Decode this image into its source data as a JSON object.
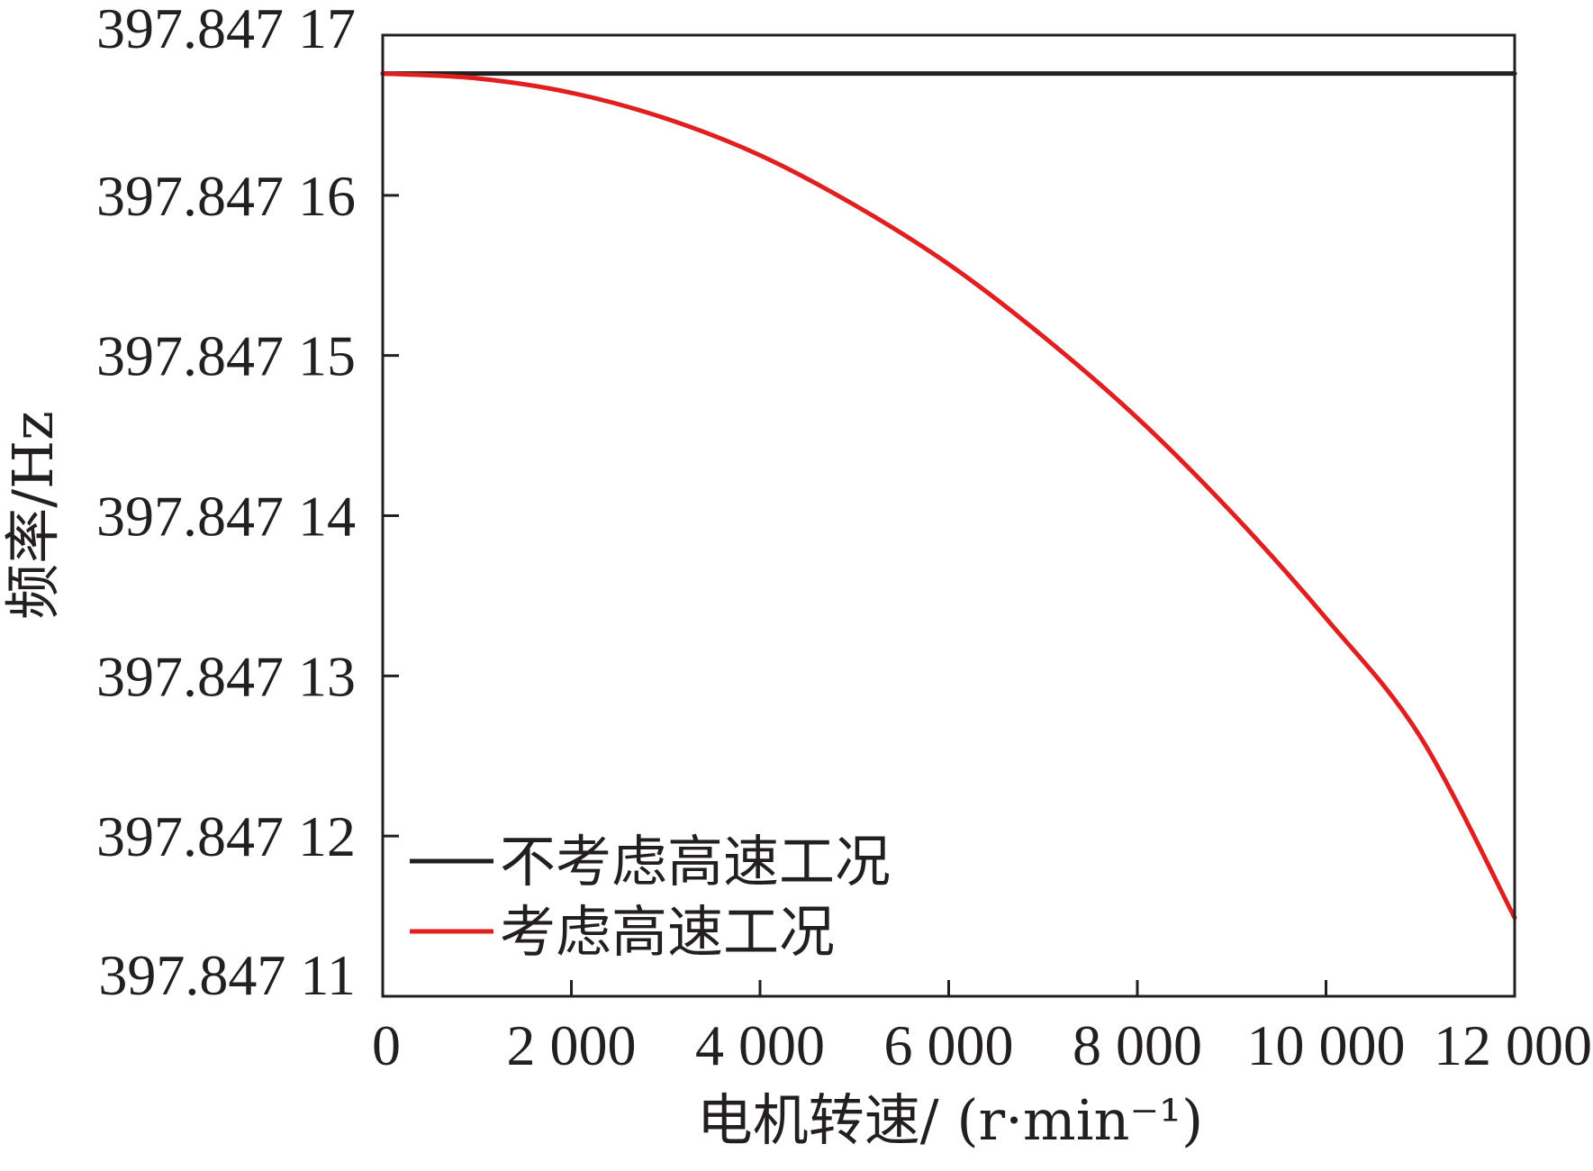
{
  "chart_data": {
    "type": "line",
    "xlabel": "电机转速/ (r·min⁻¹)",
    "ylabel": "频率/Hz",
    "xlim": [
      0,
      12000
    ],
    "ylim": [
      11,
      17
    ],
    "x_ticks": [
      0,
      2000,
      4000,
      6000,
      8000,
      10000,
      12000
    ],
    "x_tick_labels": [
      "0",
      "2 000",
      "4 000",
      "6 000",
      "8 000",
      "10 000",
      "12 000"
    ],
    "y_ticks": [
      11,
      12,
      13,
      14,
      15,
      16,
      17
    ],
    "y_tick_labels": [
      "397.847 11",
      "397.847 12",
      "397.847 13",
      "397.847 14",
      "397.847 15",
      "397.847 16",
      "397.847 17"
    ],
    "y_value_note": "397.847 xx",
    "grid": false,
    "legend_position": "bottom-left",
    "series": [
      {
        "name": "不考虑高速工况",
        "color": "#231f20",
        "x": [
          0,
          12000
        ],
        "y": [
          16.76,
          16.76
        ]
      },
      {
        "name": "考虑高速工况",
        "color": "#e02020",
        "x": [
          0,
          1000,
          2000,
          3000,
          4000,
          5000,
          6000,
          7000,
          8000,
          9000,
          10000,
          11000,
          12000
        ],
        "y": [
          16.76,
          16.73,
          16.64,
          16.48,
          16.25,
          15.94,
          15.57,
          15.12,
          14.61,
          14.02,
          13.36,
          12.62,
          11.49
        ]
      }
    ]
  }
}
